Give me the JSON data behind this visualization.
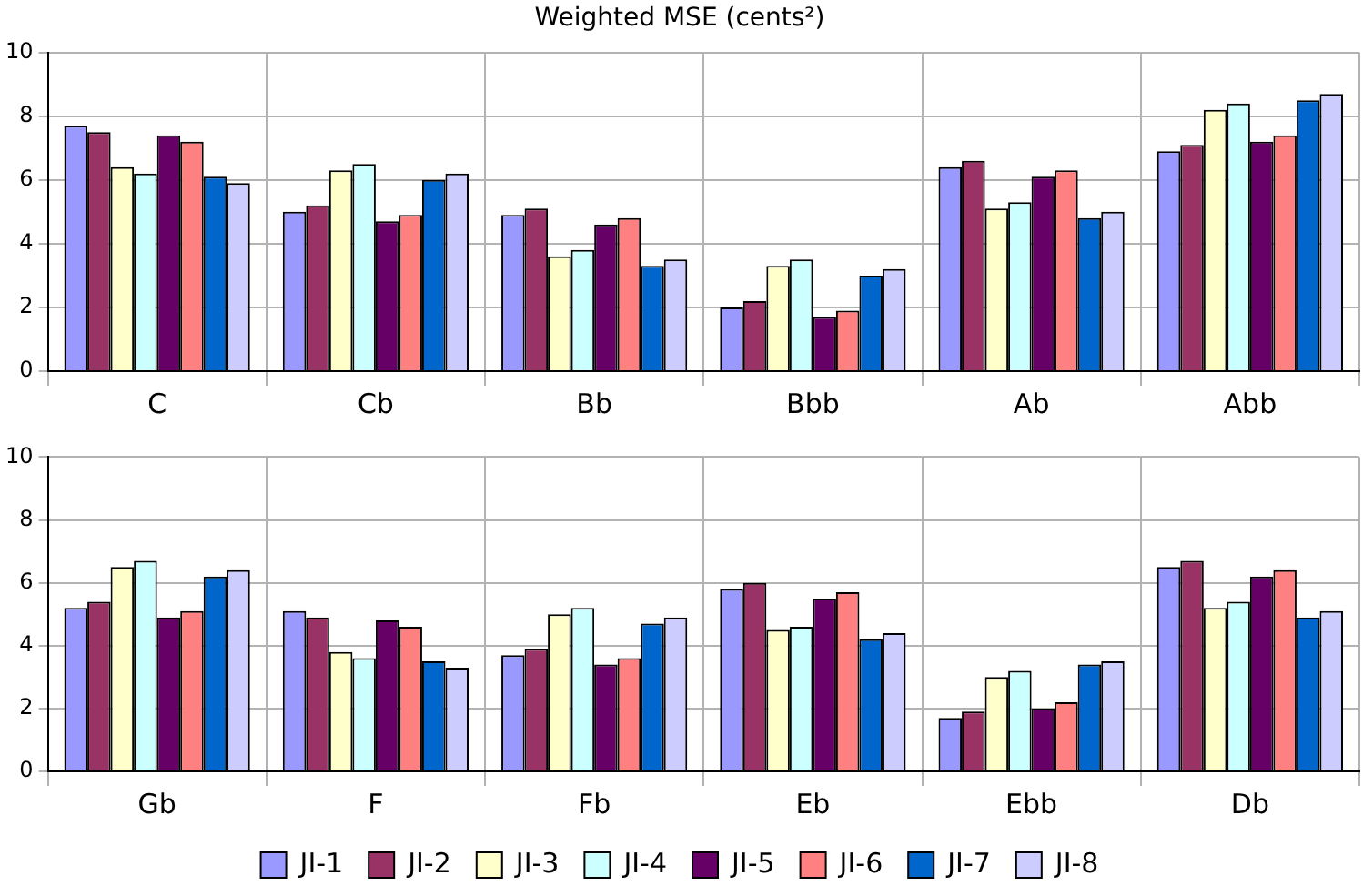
{
  "chart_data": [
    {
      "type": "bar",
      "title": "Weighted MSE (cents²)",
      "categories": [
        "C",
        "Cb",
        "Bb",
        "Bbb",
        "Ab",
        "Abb"
      ],
      "ylim": [
        0,
        10
      ],
      "yticks": [
        0,
        2,
        4,
        6,
        8,
        10
      ],
      "grid": true,
      "series": [
        {
          "color": "#9999ff",
          "values": [
            7.7,
            5.0,
            4.9,
            2.0,
            6.4,
            6.9
          ]
        },
        {
          "color": "#993366",
          "values": [
            7.5,
            5.2,
            5.1,
            2.2,
            6.6,
            7.1
          ]
        },
        {
          "color": "#ffffcc",
          "values": [
            6.4,
            6.3,
            3.6,
            3.3,
            5.1,
            8.2
          ]
        },
        {
          "color": "#ccffff",
          "values": [
            6.2,
            6.5,
            3.8,
            3.5,
            5.3,
            8.4
          ]
        },
        {
          "color": "#660066",
          "values": [
            7.4,
            4.7,
            4.6,
            1.7,
            6.1,
            7.2
          ]
        },
        {
          "color": "#ff8080",
          "values": [
            7.2,
            4.9,
            4.8,
            1.9,
            6.3,
            7.4
          ]
        },
        {
          "color": "#0066cc",
          "values": [
            6.1,
            6.0,
            3.3,
            3.0,
            4.8,
            8.5
          ]
        },
        {
          "color": "#ccccff",
          "values": [
            5.9,
            6.2,
            3.5,
            3.2,
            5.0,
            8.7
          ]
        }
      ]
    },
    {
      "type": "bar",
      "categories": [
        "Gb",
        "F",
        "Fb",
        "Eb",
        "Ebb",
        "Db"
      ],
      "ylim": [
        0,
        10
      ],
      "yticks": [
        0,
        2,
        4,
        6,
        8,
        10
      ],
      "grid": true,
      "legend": "bottom",
      "series": [
        {
          "name": "JI-1",
          "color": "#9999ff",
          "values": [
            5.2,
            5.1,
            3.7,
            5.8,
            1.7,
            6.5
          ]
        },
        {
          "name": "JI-2",
          "color": "#993366",
          "values": [
            5.4,
            4.9,
            3.9,
            6.0,
            1.9,
            6.7
          ]
        },
        {
          "name": "JI-3",
          "color": "#ffffcc",
          "values": [
            6.5,
            3.8,
            5.0,
            4.5,
            3.0,
            5.2
          ]
        },
        {
          "name": "JI-4",
          "color": "#ccffff",
          "values": [
            6.7,
            3.6,
            5.2,
            4.6,
            3.2,
            5.4
          ]
        },
        {
          "name": "JI-5",
          "color": "#660066",
          "values": [
            4.9,
            4.8,
            3.4,
            5.5,
            2.0,
            6.2
          ]
        },
        {
          "name": "JI-6",
          "color": "#ff8080",
          "values": [
            5.1,
            4.6,
            3.6,
            5.7,
            2.2,
            6.4
          ]
        },
        {
          "name": "JI-7",
          "color": "#0066cc",
          "values": [
            6.2,
            3.5,
            4.7,
            4.2,
            3.4,
            4.9
          ]
        },
        {
          "name": "JI-8",
          "color": "#ccccff",
          "values": [
            6.4,
            3.3,
            4.9,
            4.4,
            3.5,
            5.1
          ]
        }
      ]
    }
  ]
}
